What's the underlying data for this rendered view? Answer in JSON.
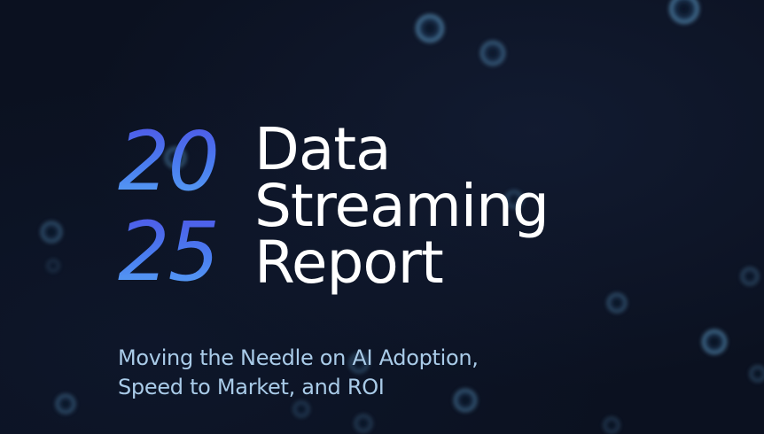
{
  "report": {
    "year_line1": "20",
    "year_line2": "25",
    "title_line1": "Data",
    "title_line2": "Streaming",
    "title_line3": "Report",
    "subtitle_line1": "Moving the Needle on AI Adoption,",
    "subtitle_line2": "Speed to Market, and ROI"
  },
  "colors": {
    "background": "#0b1120",
    "year_gradient_top": "#4f54e6",
    "year_gradient_bottom": "#5aa6f4",
    "title": "#ffffff",
    "subtitle": "#a9cbe8"
  }
}
